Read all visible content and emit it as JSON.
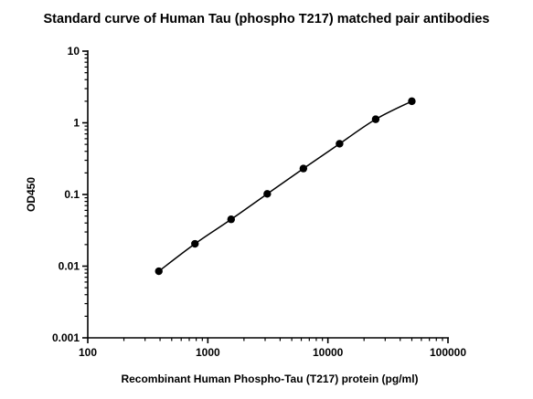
{
  "chart_data": {
    "type": "scatter",
    "title": "Standard curve of Human Tau (phospho T217) matched pair antibodies",
    "xlabel": "Recombinant Human Phospho-Tau (T217) protein (pg/ml)",
    "ylabel": "OD450",
    "xscale": "log",
    "yscale": "log",
    "xlim": [
      100,
      100000
    ],
    "ylim": [
      0.001,
      10
    ],
    "x_ticks": [
      "100",
      "1000",
      "10000",
      "100000"
    ],
    "y_ticks": [
      "0.001",
      "0.01",
      "0.1",
      "1",
      "10"
    ],
    "grid": false,
    "legend": "none",
    "series": [
      {
        "x": [
          390.625,
          781.25,
          1562.5,
          3125,
          6250,
          12500,
          25000,
          50000
        ],
        "y": [
          0.0085,
          0.0205,
          0.045,
          0.102,
          0.23,
          0.51,
          1.12,
          2.0
        ],
        "fit_line": true
      }
    ],
    "colors": {
      "marker": "#000000",
      "line": "#000000",
      "axis": "#000000"
    }
  }
}
